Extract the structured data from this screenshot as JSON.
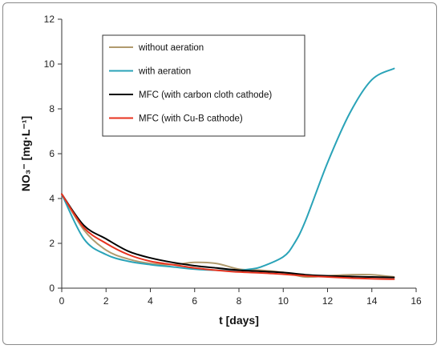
{
  "chart_data": {
    "type": "line",
    "xlabel": "t [days]",
    "ylabel": "NO₃⁻ [mg·L⁻¹]",
    "xlim": [
      0,
      16
    ],
    "ylim": [
      0,
      12
    ],
    "xticks": [
      0,
      2,
      4,
      6,
      8,
      10,
      12,
      14,
      16
    ],
    "yticks": [
      0,
      2,
      4,
      6,
      8,
      10,
      12
    ],
    "grid": false,
    "legend": "top-left, boxed",
    "series": [
      {
        "name": "without aeration",
        "color": "#b09a6d",
        "x": [
          0,
          1,
          2,
          3,
          4,
          5,
          6,
          7,
          8,
          9,
          10,
          11,
          12,
          13,
          14,
          15
        ],
        "values": [
          4.2,
          2.6,
          1.7,
          1.3,
          1.1,
          1.05,
          1.15,
          1.1,
          0.85,
          0.8,
          0.7,
          0.5,
          0.55,
          0.6,
          0.6,
          0.5
        ]
      },
      {
        "name": "with aeration",
        "color": "#2aa3b8",
        "x": [
          0,
          1,
          2,
          3,
          4,
          5,
          6,
          7,
          8,
          8.5,
          9,
          10,
          10.5,
          11,
          12,
          13,
          14,
          15
        ],
        "values": [
          4.2,
          2.2,
          1.5,
          1.2,
          1.05,
          0.95,
          0.85,
          0.8,
          0.8,
          0.85,
          0.95,
          1.4,
          2.0,
          3.0,
          5.6,
          7.8,
          9.3,
          9.8
        ]
      },
      {
        "name": "MFC (with carbon cloth cathode)",
        "color": "#000000",
        "x": [
          0,
          1,
          2,
          3,
          4,
          5,
          6,
          7,
          8,
          9,
          10,
          11,
          12,
          13,
          14,
          15
        ],
        "values": [
          4.2,
          2.8,
          2.2,
          1.65,
          1.35,
          1.15,
          1.0,
          0.9,
          0.8,
          0.75,
          0.7,
          0.6,
          0.55,
          0.52,
          0.5,
          0.48
        ]
      },
      {
        "name": "MFC (with Cu-B cathode)",
        "color": "#e8321e",
        "x": [
          0,
          1,
          2,
          3,
          4,
          5,
          6,
          7,
          8,
          9,
          10,
          11,
          12,
          13,
          14,
          15
        ],
        "values": [
          4.2,
          2.7,
          2.0,
          1.5,
          1.2,
          1.05,
          0.9,
          0.8,
          0.72,
          0.68,
          0.62,
          0.55,
          0.5,
          0.45,
          0.42,
          0.4
        ]
      }
    ]
  }
}
